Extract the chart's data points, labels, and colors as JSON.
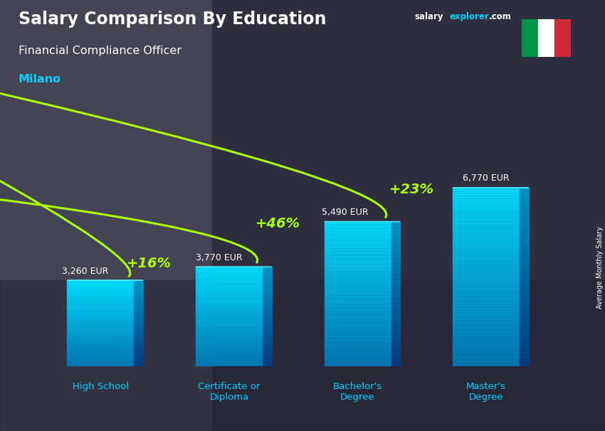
{
  "title_salary": "Salary Comparison By Education",
  "subtitle_job": "Financial Compliance Officer",
  "subtitle_city": "Milano",
  "categories": [
    "High School",
    "Certificate or\nDiploma",
    "Bachelor's\nDegree",
    "Master's\nDegree"
  ],
  "values": [
    3260,
    3770,
    5490,
    6770
  ],
  "value_labels": [
    "3,260 EUR",
    "3,770 EUR",
    "5,490 EUR",
    "6,770 EUR"
  ],
  "pct_labels": [
    "+16%",
    "+46%",
    "+23%"
  ],
  "text_color_white": "#ffffff",
  "text_color_cyan": "#00d4ff",
  "text_color_green": "#aaff00",
  "axis_label_right": "Average Monthly Salary",
  "site_salary": "salary",
  "site_explorer": "explorer",
  "site_com": ".com",
  "ylim_max": 8500,
  "bar_width": 0.52,
  "flag_green": "#009246",
  "flag_white": "#ffffff",
  "flag_red": "#ce2b37",
  "bg_dark": "#2a2a3a",
  "bar_cyan_light": "#00e5ff",
  "bar_cyan_dark": "#005f8a",
  "bar_side_light": "#00aacc",
  "bar_side_dark": "#004466"
}
